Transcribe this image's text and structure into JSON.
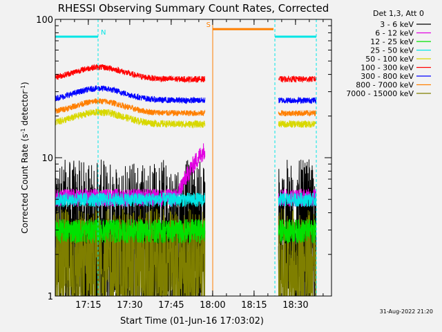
{
  "chart_data": {
    "type": "line",
    "title": "RHESSI Observing Summary Count Rates, Corrected",
    "xlabel": "Start Time (01-Jun-16 17:03:02)",
    "ylabel_main": "Corrected Count Rate (s",
    "ylabel_sup1": "-1",
    "ylabel_mid": " detector",
    "ylabel_sup2": "-1",
    "ylabel_end": ")",
    "yscale": "log",
    "ylim": [
      1,
      100
    ],
    "yticks": [
      {
        "value": 1,
        "label": "1"
      },
      {
        "value": 10,
        "label": "10"
      },
      {
        "value": 100,
        "label": "100"
      }
    ],
    "x_unit": "minutes since 17:03:02",
    "xlim": [
      0,
      100
    ],
    "xticks": [
      {
        "value": 11.97,
        "label": "17:15"
      },
      {
        "value": 26.97,
        "label": "17:30"
      },
      {
        "value": 41.97,
        "label": "17:45"
      },
      {
        "value": 56.97,
        "label": "18:00"
      },
      {
        "value": 71.97,
        "label": "18:15"
      },
      {
        "value": 86.97,
        "label": "18:30"
      }
    ],
    "legend_title": "Det 1,3, Att 0",
    "legend_position": "top-right, outside plot",
    "timestamp": "31-Aug-2022 21:20",
    "data_gaps": [
      [
        54.2,
        80.8
      ],
      [
        94.4,
        100
      ]
    ],
    "flags": [
      {
        "label": "N",
        "color": "#00e5e5",
        "level": 75,
        "spans": [
          [
            0,
            15.5
          ],
          [
            79.5,
            94.5
          ]
        ],
        "boundaries": [
          15.5,
          79.5,
          94.5
        ]
      },
      {
        "label": "S",
        "color": "#ff7f00",
        "level": 85,
        "spans": [
          [
            57.0,
            79.0
          ]
        ],
        "boundaries": [
          57.0
        ]
      }
    ],
    "series": [
      {
        "name": "3 - 6 keV",
        "color": "#000000",
        "base": 2.6,
        "spread": 0.4,
        "profile": "bursty"
      },
      {
        "name": "6 - 12 keV",
        "color": "#e100e1",
        "base": 5.2,
        "spread": 0.15,
        "profile": "rise-end"
      },
      {
        "name": "12 - 25 keV",
        "color": "#00e100",
        "base": 3.0,
        "spread": 0.2,
        "profile": "flat"
      },
      {
        "name": "25 - 50 keV",
        "color": "#00e5e5",
        "base": 5.0,
        "spread": 0.12,
        "profile": "flat"
      },
      {
        "name": "50 - 100 keV",
        "color": "#d8d800",
        "base": 17.5,
        "spread": 0.06,
        "profile": "hump"
      },
      {
        "name": "100 - 300 keV",
        "color": "#ff0000",
        "base": 37,
        "spread": 0.05,
        "profile": "hump"
      },
      {
        "name": "300 - 800 keV",
        "color": "#0000ff",
        "base": 26,
        "spread": 0.05,
        "profile": "hump"
      },
      {
        "name": "800 - 7000 keV",
        "color": "#ff7f00",
        "base": 21,
        "spread": 0.05,
        "profile": "hump"
      },
      {
        "name": "7000 - 15000 keV",
        "color": "#7f7f00",
        "base": 1.6,
        "spread": 0.3,
        "profile": "bursty"
      }
    ]
  }
}
